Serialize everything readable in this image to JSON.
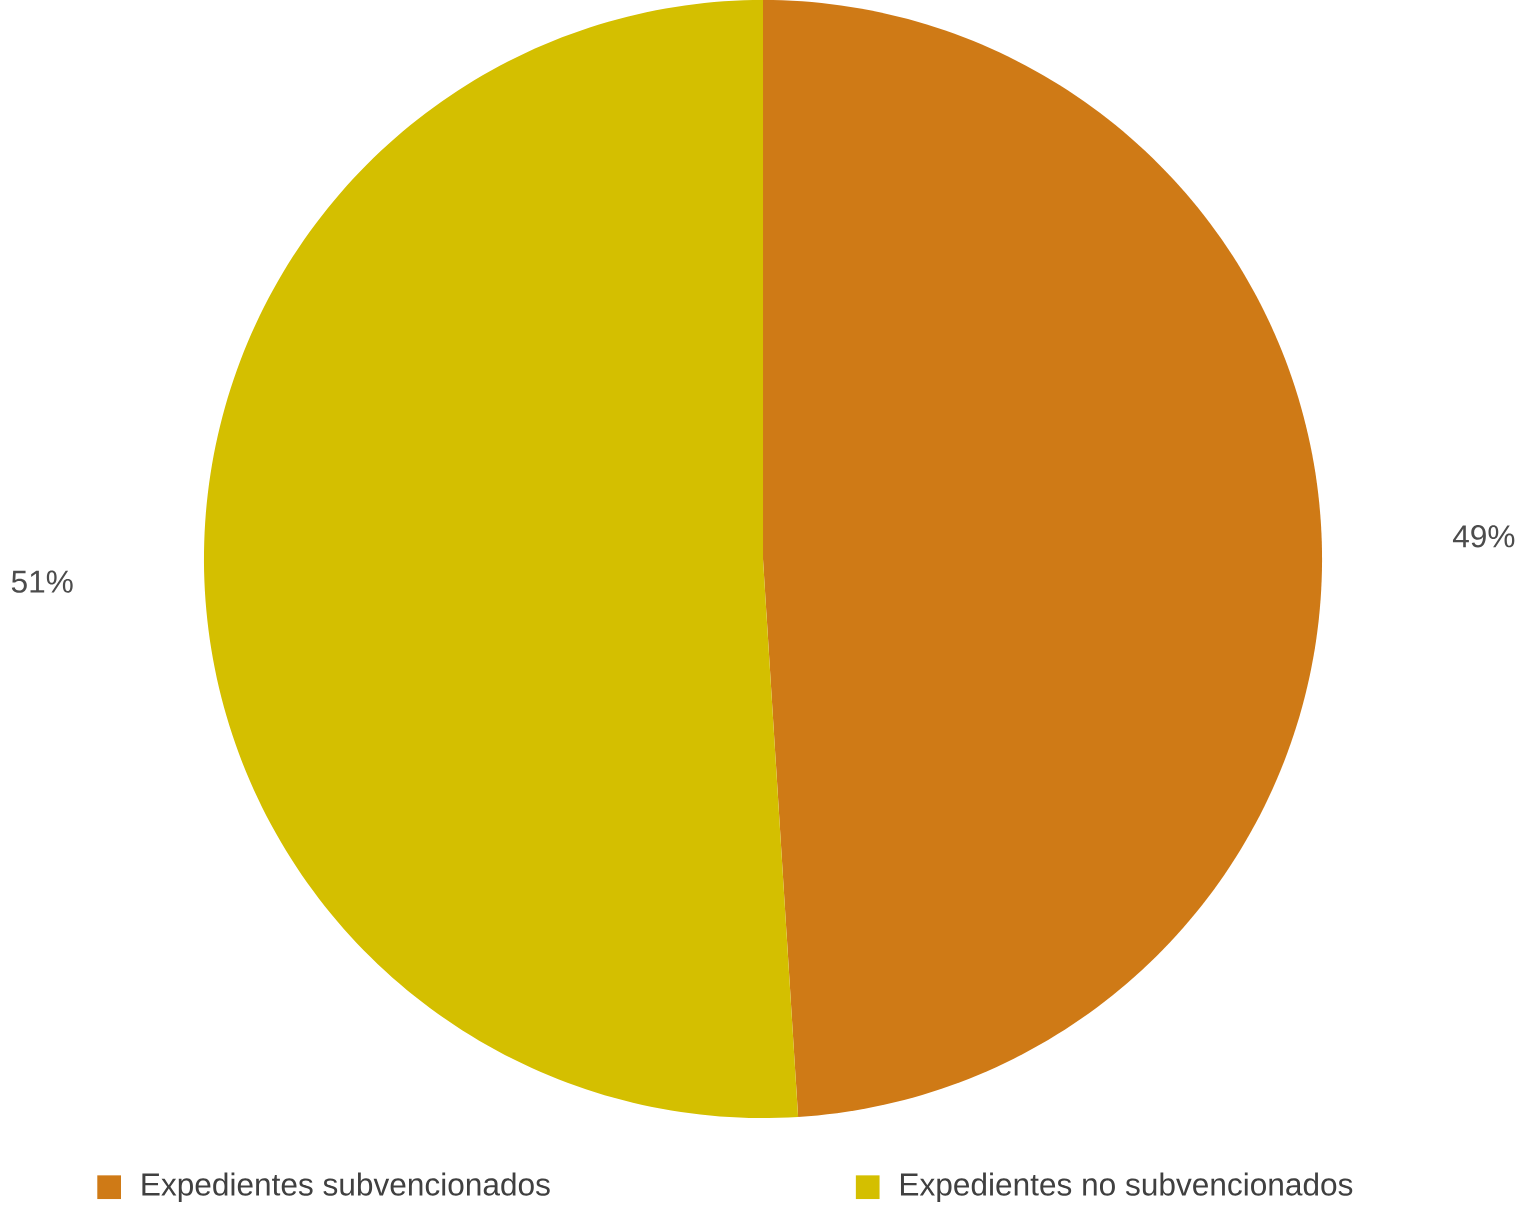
{
  "chart_data": {
    "type": "pie",
    "categories": [
      "Expedientes subvencionados",
      "Expedientes no subvencionados"
    ],
    "values": [
      49,
      51
    ],
    "colors": [
      "#cf7a16",
      "#d4bf00"
    ],
    "value_labels": [
      "49%",
      "51%"
    ],
    "legend": "bottom"
  }
}
